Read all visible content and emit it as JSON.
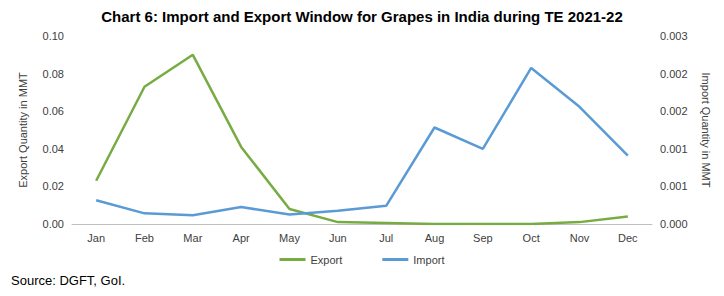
{
  "chart_data": {
    "type": "line",
    "title": "Chart 6: Import and Export Window for Grapes in India during TE 2021-22",
    "source": "Source: DGFT, GoI.",
    "ylabel": "Export Quantity in MMT",
    "y2label": "Import Quantity in MMT",
    "categories": [
      "Jan",
      "Feb",
      "Mar",
      "Apr",
      "May",
      "Jun",
      "Jul",
      "Aug",
      "Sep",
      "Oct",
      "Nov",
      "Dec"
    ],
    "series": [
      {
        "name": "Export",
        "color": "#77ac43",
        "values": [
          0.023,
          0.073,
          0.09,
          0.041,
          0.008,
          0.001,
          0.0005,
          0,
          0,
          0,
          0.001,
          0.004
        ]
      },
      {
        "name": "Import",
        "color": "#5b9bd5",
        "axis": "y2",
        "values": [
          0.00038,
          0.00017,
          0.00014,
          0.00027,
          0.00015,
          0.00021,
          0.00029,
          0.00154,
          0.0012,
          0.00249,
          0.00187,
          0.00109
        ]
      }
    ],
    "ylim": [
      0,
      0.1
    ],
    "yticks": [
      {
        "value": 0,
        "label": "0.00"
      },
      {
        "value": 0.02,
        "label": "0.02"
      },
      {
        "value": 0.04,
        "label": "0.04"
      },
      {
        "value": 0.06,
        "label": "0.06"
      },
      {
        "value": 0.08,
        "label": "0.08"
      },
      {
        "value": 0.1,
        "label": "0.10"
      }
    ],
    "y2lim": [
      0,
      0.003
    ],
    "y2ticks": [
      {
        "value": 0,
        "label": "0.000"
      },
      {
        "value": 0.0006,
        "label": "0.001"
      },
      {
        "value": 0.0012,
        "label": "0.001"
      },
      {
        "value": 0.0018,
        "label": "0.002"
      },
      {
        "value": 0.0024,
        "label": "0.002"
      },
      {
        "value": 0.003,
        "label": "0.003"
      }
    ],
    "grid": false,
    "legend": "bottom"
  }
}
